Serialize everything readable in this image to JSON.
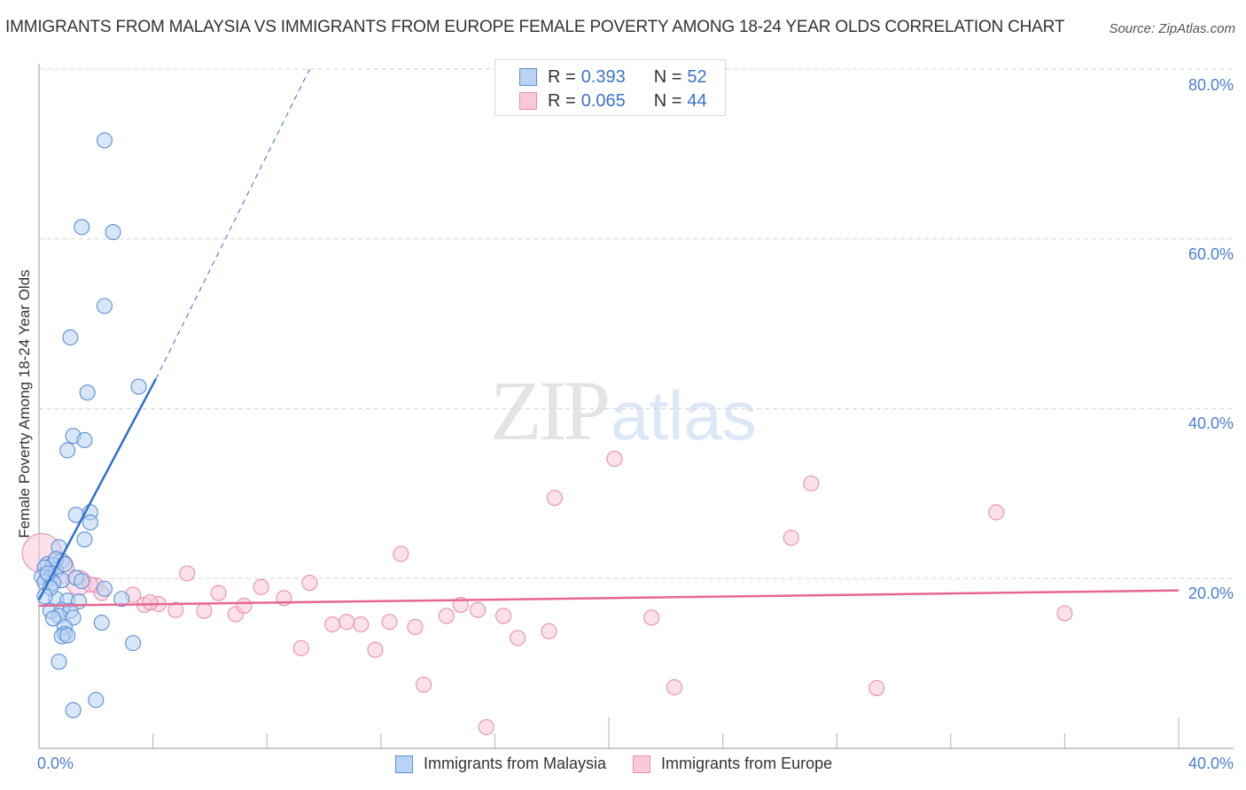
{
  "header": {
    "title": "IMMIGRANTS FROM MALAYSIA VS IMMIGRANTS FROM EUROPE FEMALE POVERTY AMONG 18-24 YEAR OLDS CORRELATION CHART",
    "source": "Source: ZipAtlas.com"
  },
  "watermark": {
    "zip": "ZIP",
    "atlas": "atlas"
  },
  "axes": {
    "ylabel": "Female Poverty Among 18-24 Year Olds",
    "yticks": [
      "80.0%",
      "60.0%",
      "40.0%",
      "20.0%"
    ],
    "xtick_left": "0.0%",
    "xtick_right": "40.0%"
  },
  "legend_top": {
    "rows": [
      {
        "r_label": "R = ",
        "r_value": "0.393",
        "n_label": "N = ",
        "n_value": "52"
      },
      {
        "r_label": "R = ",
        "r_value": "0.065",
        "n_label": "N = ",
        "n_value": "44"
      }
    ]
  },
  "legend_bottom": {
    "items": [
      {
        "label": "Immigrants from Malaysia"
      },
      {
        "label": "Immigrants from Europe"
      }
    ]
  },
  "colors": {
    "malaysia_fill": "#b8d3f3",
    "malaysia_stroke": "#5b8fd6",
    "malaysia_line": "#2f6fce",
    "europe_fill": "#f9c9d8",
    "europe_stroke": "#e890ab",
    "europe_line": "#e8678f",
    "value_text": "#3a73c9"
  },
  "chart_data": {
    "type": "scatter",
    "title": "IMMIGRANTS FROM MALAYSIA VS IMMIGRANTS FROM EUROPE FEMALE POVERTY AMONG 18-24 YEAR OLDS CORRELATION CHART",
    "xlabel": "",
    "ylabel": "Female Poverty Among 18-24 Year Olds",
    "xlim": [
      0,
      40
    ],
    "ylim": [
      0,
      80
    ],
    "x_tick_labels": [
      "0.0%",
      "40.0%"
    ],
    "y_tick_labels": [
      "20.0%",
      "40.0%",
      "60.0%",
      "80.0%"
    ],
    "grid": true,
    "legend_position": "bottom",
    "series": [
      {
        "name": "Immigrants from Malaysia",
        "R": 0.393,
        "N": 52,
        "trendline": {
          "x": [
            0,
            4.1
          ],
          "y": [
            17.5,
            43.5
          ],
          "dashed_extension_to": [
            9.5,
            80
          ]
        },
        "points": [
          [
            2.3,
            71.6
          ],
          [
            1.5,
            61.4
          ],
          [
            2.6,
            60.8
          ],
          [
            2.3,
            52.1
          ],
          [
            1.1,
            48.4
          ],
          [
            1.7,
            41.9
          ],
          [
            3.5,
            42.6
          ],
          [
            1.2,
            36.8
          ],
          [
            1.6,
            36.3
          ],
          [
            1.0,
            35.1
          ],
          [
            1.3,
            27.5
          ],
          [
            1.8,
            27.8
          ],
          [
            1.8,
            26.6
          ],
          [
            1.6,
            24.6
          ],
          [
            0.7,
            23.7
          ],
          [
            0.8,
            22.1
          ],
          [
            0.3,
            21.7
          ],
          [
            0.5,
            21.6
          ],
          [
            0.2,
            21.3
          ],
          [
            0.6,
            21.0
          ],
          [
            0.1,
            20.2
          ],
          [
            0.4,
            20.0
          ],
          [
            0.2,
            19.6
          ],
          [
            0.8,
            19.8
          ],
          [
            0.5,
            19.5
          ],
          [
            2.3,
            18.8
          ],
          [
            0.6,
            17.6
          ],
          [
            1.0,
            17.4
          ],
          [
            1.4,
            17.3
          ],
          [
            2.9,
            17.6
          ],
          [
            0.4,
            16.2
          ],
          [
            0.8,
            16.3
          ],
          [
            1.1,
            16.2
          ],
          [
            0.7,
            15.6
          ],
          [
            0.5,
            15.3
          ],
          [
            1.2,
            15.4
          ],
          [
            2.2,
            14.8
          ],
          [
            0.9,
            14.3
          ],
          [
            0.9,
            13.5
          ],
          [
            0.8,
            13.2
          ],
          [
            1.0,
            13.3
          ],
          [
            3.3,
            12.4
          ],
          [
            0.7,
            10.2
          ],
          [
            1.2,
            4.5
          ],
          [
            2.0,
            5.7
          ],
          [
            0.3,
            20.6
          ],
          [
            0.6,
            22.3
          ],
          [
            0.9,
            21.7
          ],
          [
            1.3,
            20.1
          ],
          [
            0.4,
            18.9
          ],
          [
            0.2,
            17.9
          ],
          [
            1.5,
            19.7
          ]
        ]
      },
      {
        "name": "Immigrants from Europe",
        "R": 0.065,
        "N": 44,
        "trendline": {
          "x": [
            0,
            40
          ],
          "y": [
            16.8,
            18.6
          ]
        },
        "points": [
          [
            0.1,
            23.0
          ],
          [
            0.7,
            21.2
          ],
          [
            1.4,
            19.5
          ],
          [
            2.0,
            19.2
          ],
          [
            2.2,
            18.3
          ],
          [
            3.3,
            18.1
          ],
          [
            3.7,
            16.9
          ],
          [
            4.2,
            17.0
          ],
          [
            4.8,
            16.3
          ],
          [
            5.2,
            20.6
          ],
          [
            5.8,
            16.2
          ],
          [
            6.3,
            18.3
          ],
          [
            6.9,
            15.8
          ],
          [
            7.8,
            19.0
          ],
          [
            8.6,
            17.7
          ],
          [
            7.2,
            16.8
          ],
          [
            9.5,
            19.5
          ],
          [
            9.2,
            11.8
          ],
          [
            10.3,
            14.6
          ],
          [
            10.8,
            14.9
          ],
          [
            11.3,
            14.6
          ],
          [
            11.8,
            11.6
          ],
          [
            12.3,
            14.9
          ],
          [
            12.7,
            22.9
          ],
          [
            13.2,
            14.3
          ],
          [
            13.5,
            7.5
          ],
          [
            14.3,
            15.6
          ],
          [
            14.8,
            16.9
          ],
          [
            15.4,
            16.3
          ],
          [
            15.7,
            2.5
          ],
          [
            16.3,
            15.6
          ],
          [
            16.8,
            13.0
          ],
          [
            17.9,
            13.8
          ],
          [
            18.1,
            29.5
          ],
          [
            20.2,
            34.1
          ],
          [
            21.5,
            15.4
          ],
          [
            22.3,
            7.2
          ],
          [
            26.4,
            24.8
          ],
          [
            27.1,
            31.2
          ],
          [
            29.4,
            7.1
          ],
          [
            33.6,
            27.8
          ],
          [
            36.0,
            15.9
          ],
          [
            1.8,
            19.3
          ],
          [
            3.9,
            17.2
          ]
        ]
      }
    ]
  }
}
